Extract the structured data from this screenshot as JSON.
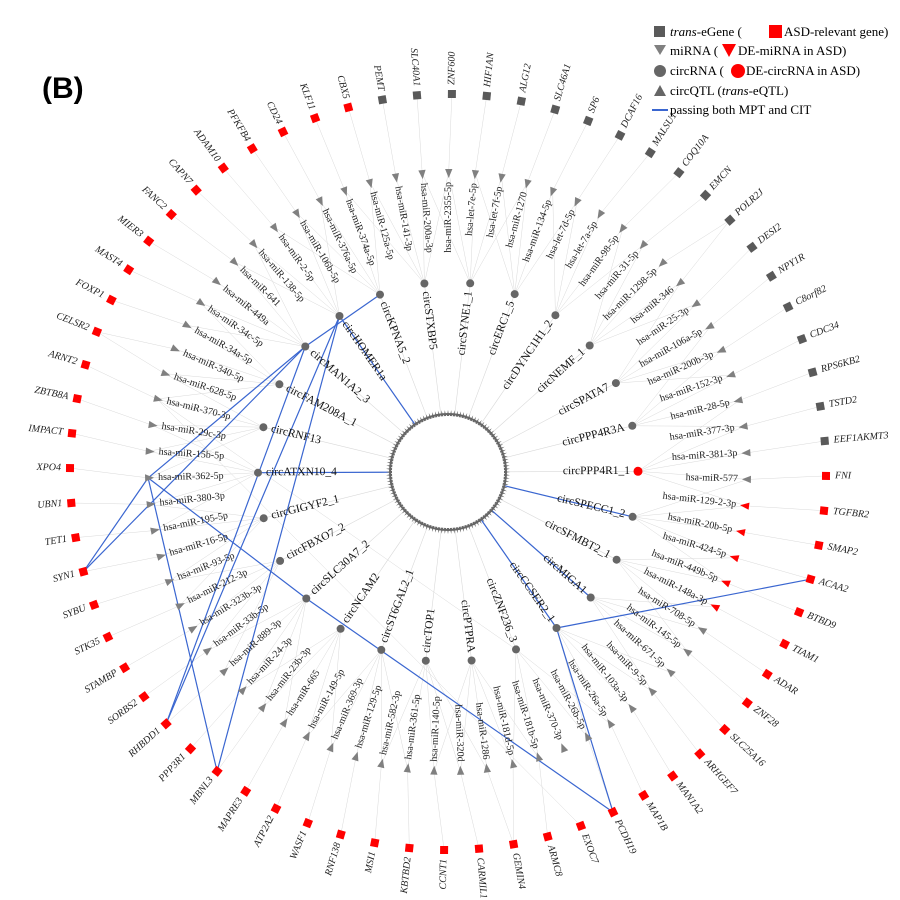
{
  "panel_label": "(B)",
  "legend": {
    "egene": {
      "italic": "trans",
      "text": "-eGene (",
      "after": " ASD-relevant gene)"
    },
    "mirna": {
      "text": "miRNA (",
      "after": " DE-miRNA in ASD)"
    },
    "circrna": {
      "text": "circRNA (",
      "after": " DE-circRNA in ASD)"
    },
    "qtl": {
      "text": "circQTL (",
      "italic": "trans",
      "after": "-eQTL)"
    },
    "line": {
      "text": "passing both MPT and CIT"
    }
  },
  "colors": {
    "gene_gray": "#5a5a5a",
    "asd_red": "#ff0000",
    "mir_gray": "#808080",
    "circ_gray": "#666666",
    "blue_edge": "#3a66d0",
    "faint_edge": "#d9d9d9",
    "hub": "#666666"
  },
  "genes": [
    {
      "name": "PEMT",
      "red": false
    },
    {
      "name": "SLC40A1",
      "red": false
    },
    {
      "name": "ZNF600",
      "red": false
    },
    {
      "name": "HIF1AN",
      "red": false
    },
    {
      "name": "ALG12",
      "red": false
    },
    {
      "name": "SLC46A1",
      "red": false
    },
    {
      "name": "SP6",
      "red": false
    },
    {
      "name": "DCAF16",
      "red": false
    },
    {
      "name": "MALSU1",
      "red": false
    },
    {
      "name": "COQ10A",
      "red": false
    },
    {
      "name": "EMCN",
      "red": false
    },
    {
      "name": "POLR2J",
      "red": false
    },
    {
      "name": "DESI2",
      "red": false
    },
    {
      "name": "NPY1R",
      "red": false
    },
    {
      "name": "C8orf82",
      "red": false
    },
    {
      "name": "CDC34",
      "red": false
    },
    {
      "name": "RPS6KB2",
      "red": false
    },
    {
      "name": "TSTD2",
      "red": false
    },
    {
      "name": "EEF1AKMT3",
      "red": false
    },
    {
      "name": "FNI",
      "red": true
    },
    {
      "name": "TGFBR2",
      "red": true
    },
    {
      "name": "SMAP2",
      "red": true
    },
    {
      "name": "ACAA2",
      "red": true
    },
    {
      "name": "BTBD9",
      "red": true
    },
    {
      "name": "TIAM1",
      "red": true
    },
    {
      "name": "ADAR",
      "red": true
    },
    {
      "name": "ZNF28",
      "red": true
    },
    {
      "name": "SLC25A16",
      "red": true
    },
    {
      "name": "ARHGEF7",
      "red": true
    },
    {
      "name": "MAN1A2",
      "red": true
    },
    {
      "name": "MAP1B",
      "red": true
    },
    {
      "name": "PCDH19",
      "red": true
    },
    {
      "name": "EXOC7",
      "red": true
    },
    {
      "name": "ARMC8",
      "red": true
    },
    {
      "name": "GEMIN4",
      "red": true
    },
    {
      "name": "CARMIL1",
      "red": true
    },
    {
      "name": "CCNT1",
      "red": true
    },
    {
      "name": "KBTBD2",
      "red": true
    },
    {
      "name": "MSI1",
      "red": true
    },
    {
      "name": "RNF138",
      "red": true
    },
    {
      "name": "WASF1",
      "red": true
    },
    {
      "name": "ATP2A2",
      "red": true
    },
    {
      "name": "MAPRE3",
      "red": true
    },
    {
      "name": "MBNL3",
      "red": true
    },
    {
      "name": "PPP3R1",
      "red": true
    },
    {
      "name": "RHBDD1",
      "red": true
    },
    {
      "name": "SORBS2",
      "red": true
    },
    {
      "name": "STAMBP",
      "red": true
    },
    {
      "name": "STK35",
      "red": true
    },
    {
      "name": "SYBU",
      "red": true
    },
    {
      "name": "SYN1",
      "red": true
    },
    {
      "name": "TET1",
      "red": true
    },
    {
      "name": "UBN1",
      "red": true
    },
    {
      "name": "XPO4",
      "red": true
    },
    {
      "name": "IMPACT",
      "red": true
    },
    {
      "name": "ZBTB8A",
      "red": true
    },
    {
      "name": "ARNT2",
      "red": true
    },
    {
      "name": "CELSR2",
      "red": true
    },
    {
      "name": "FOXP1",
      "red": true
    },
    {
      "name": "MAST4",
      "red": true
    },
    {
      "name": "MIER3",
      "red": true
    },
    {
      "name": "FANC2",
      "red": true
    },
    {
      "name": "CAPN7",
      "red": true
    },
    {
      "name": "ADAM10",
      "red": true
    },
    {
      "name": "PFKFB4",
      "red": true
    },
    {
      "name": "CD24",
      "red": true
    },
    {
      "name": "KLF11",
      "red": true
    },
    {
      "name": "CBX5",
      "red": true
    }
  ],
  "mirnas": [
    {
      "name": "hsa-miR-141-3p",
      "red": false
    },
    {
      "name": "hsa-miR-200a-3p",
      "red": false
    },
    {
      "name": "hsa-miR-2355-5p",
      "red": false
    },
    {
      "name": "hsa-let-7e-5p",
      "red": false
    },
    {
      "name": "hsa-let-7f-5p",
      "red": false
    },
    {
      "name": "hsa-miR-1270",
      "red": false
    },
    {
      "name": "hsa-miR-134-5p",
      "red": false
    },
    {
      "name": "hsa-let-7d-5p",
      "red": false
    },
    {
      "name": "hsa-let-7a-5p",
      "red": false
    },
    {
      "name": "hsa-miR-98-5p",
      "red": false
    },
    {
      "name": "hsa-miR-31-5p",
      "red": false
    },
    {
      "name": "hsa-miR-1298-5p",
      "red": false
    },
    {
      "name": "hsa-miR-346",
      "red": false
    },
    {
      "name": "hsa-miR-25-3p",
      "red": false
    },
    {
      "name": "hsa-miR-106a-5p",
      "red": false
    },
    {
      "name": "hsa-miR-200b-3p",
      "red": false
    },
    {
      "name": "hsa-miR-152-3p",
      "red": false
    },
    {
      "name": "hsa-miR-28-5p",
      "red": false
    },
    {
      "name": "hsa-miR-377-3p",
      "red": false
    },
    {
      "name": "hsa-miR-381-3p",
      "red": false
    },
    {
      "name": "hsa-miR-577",
      "red": false
    },
    {
      "name": "hsa-miR-129-2-3p",
      "red": true
    },
    {
      "name": "hsa-miR-20b-5p",
      "red": true
    },
    {
      "name": "hsa-miR-424-5p",
      "red": true
    },
    {
      "name": "hsa-miR-449b-5p",
      "red": true
    },
    {
      "name": "hsa-miR-148a-3p",
      "red": true
    },
    {
      "name": "hsa-miR-708-5p",
      "red": false
    },
    {
      "name": "hsa-miR-145-5p",
      "red": false
    },
    {
      "name": "hsa-miR-671-5p",
      "red": false
    },
    {
      "name": "hsa-miR-9-5p",
      "red": false
    },
    {
      "name": "hsa-miR-103a-3p",
      "red": false
    },
    {
      "name": "hsa-miR-26a-5p",
      "red": false
    },
    {
      "name": "hsa-miR-26b-5p",
      "red": false
    },
    {
      "name": "hsa-miR-370-3p",
      "red": false
    },
    {
      "name": "hsa-miR-181b-5p",
      "red": false
    },
    {
      "name": "hsa-miR-181d-5p",
      "red": false
    },
    {
      "name": "hsa-miR-1286",
      "red": false
    },
    {
      "name": "hsa-miR-320d",
      "red": false
    },
    {
      "name": "hsa-miR-140-5p",
      "red": false
    },
    {
      "name": "hsa-miR-361-5p",
      "red": false
    },
    {
      "name": "hsa-miR-582-3p",
      "red": false
    },
    {
      "name": "hsa-miR-129-5p",
      "red": false
    },
    {
      "name": "hsa-miR-369-3p",
      "red": false
    },
    {
      "name": "hsa-miR-149-5p",
      "red": false
    },
    {
      "name": "hsa-miR-665",
      "red": false
    },
    {
      "name": "hsa-miR-23b-3p",
      "red": false
    },
    {
      "name": "hsa-miR-24-3p",
      "red": false
    },
    {
      "name": "hsa-miR-889-3p",
      "red": false
    },
    {
      "name": "hsa-miR-33b-5p",
      "red": false
    },
    {
      "name": "hsa-miR-323b-3p",
      "red": false
    },
    {
      "name": "hsa-miR-212-3p",
      "red": false
    },
    {
      "name": "hsa-miR-93-5p",
      "red": false
    },
    {
      "name": "hsa-miR-16-5p",
      "red": false
    },
    {
      "name": "hsa-miR-195-5p",
      "red": false
    },
    {
      "name": "hsa-miR-380-3p",
      "red": false
    },
    {
      "name": "hsa-miR-362-5p",
      "red": false
    },
    {
      "name": "hsa-miR-15b-5p",
      "red": false
    },
    {
      "name": "hsa-miR-29c-3p",
      "red": false
    },
    {
      "name": "hsa-miR-370-3p",
      "red": false
    },
    {
      "name": "hsa-miR-628-5p",
      "red": false
    },
    {
      "name": "hsa-miR-340-5p",
      "red": false
    },
    {
      "name": "hsa-miR-34a-5p",
      "red": false
    },
    {
      "name": "hsa-miR-34c-5p",
      "red": false
    },
    {
      "name": "hsa-miR-449a",
      "red": false
    },
    {
      "name": "hsa-miR-641",
      "red": false
    },
    {
      "name": "hsa-miR-138-5p",
      "red": false
    },
    {
      "name": "hsa-miR-2-5p",
      "red": false
    },
    {
      "name": "hsa-miR-106b-5p",
      "red": false
    },
    {
      "name": "hsa-miR-376a-5p",
      "red": false
    },
    {
      "name": "hsa-miR-374a-5p",
      "red": false
    },
    {
      "name": "hsa-miR-125a-5p",
      "red": false
    }
  ],
  "circrnas": [
    {
      "name": "circSTXBP5",
      "red": false
    },
    {
      "name": "circSYNE1_1",
      "red": false
    },
    {
      "name": "circERC1_5",
      "red": false
    },
    {
      "name": "circDYNC1H1_2",
      "red": false
    },
    {
      "name": "circNEMF_1",
      "red": false
    },
    {
      "name": "circSPATA7",
      "red": false
    },
    {
      "name": "circPPP4R3A",
      "red": false
    },
    {
      "name": "circPPP4R1_1",
      "red": true
    },
    {
      "name": "circSPECC1_2",
      "red": false
    },
    {
      "name": "circSFMBT2_1",
      "red": false
    },
    {
      "name": "circMIGA1",
      "red": false
    },
    {
      "name": "circCCSER2_1",
      "red": false
    },
    {
      "name": "circZNF236_3",
      "red": false
    },
    {
      "name": "circPTPRA",
      "red": false
    },
    {
      "name": "circTOP1",
      "red": false
    },
    {
      "name": "circST6GAL2_1",
      "red": false
    },
    {
      "name": "circNCAM2",
      "red": false
    },
    {
      "name": "circSLC30A7_2",
      "red": false
    },
    {
      "name": "circFBXO7_2",
      "red": false
    },
    {
      "name": "circGIGYF2_1",
      "red": false
    },
    {
      "name": "circATXN10_4",
      "red": false
    },
    {
      "name": "circRNF13",
      "red": false
    },
    {
      "name": "circFAM208A_1",
      "red": false
    },
    {
      "name": "circMAN1A2_3",
      "red": false
    },
    {
      "name": "circHOMER1a",
      "red": false
    },
    {
      "name": "circKPNA5_2",
      "red": false
    }
  ],
  "blue_edges": [
    {
      "from": "circ:circCCSER2_1",
      "to": "gene:ACAA2"
    },
    {
      "from": "circ:circCCSER2_1",
      "to": "gene:PCDH19"
    },
    {
      "from": "circ:circCCSER2_1",
      "to": "hub"
    },
    {
      "from": "circ:circSLC30A7_2",
      "to": "gene:PCDH19"
    },
    {
      "from": "circ:circSLC30A7_2",
      "to": "mir:hsa-miR-362-5p"
    },
    {
      "from": "circ:circATXN10_4",
      "to": "hub"
    },
    {
      "from": "circ:circHOMER1a",
      "to": "hub"
    },
    {
      "from": "circ:circHOMER1a",
      "to": "gene:RHBDD1"
    },
    {
      "from": "circ:circHOMER1a",
      "to": "gene:MBNL3"
    },
    {
      "from": "circ:circMAN1A2_3",
      "to": "gene:SYN1"
    },
    {
      "from": "circ:circMAN1A2_3",
      "to": "gene:RHBDD1"
    },
    {
      "from": "circ:circMAN1A2_3",
      "to": "mir:hsa-miR-362-5p"
    },
    {
      "from": "circ:circMAN1A2_3",
      "to": "circ:circKPNA5_2"
    },
    {
      "from": "mir:hsa-miR-362-5p",
      "to": "gene:SYN1"
    },
    {
      "from": "mir:hsa-miR-362-5p",
      "to": "gene:MBNL3"
    },
    {
      "from": "circ:circMIGA1",
      "to": "hub"
    },
    {
      "from": "circ:circSPECC1_2",
      "to": "hub"
    }
  ]
}
